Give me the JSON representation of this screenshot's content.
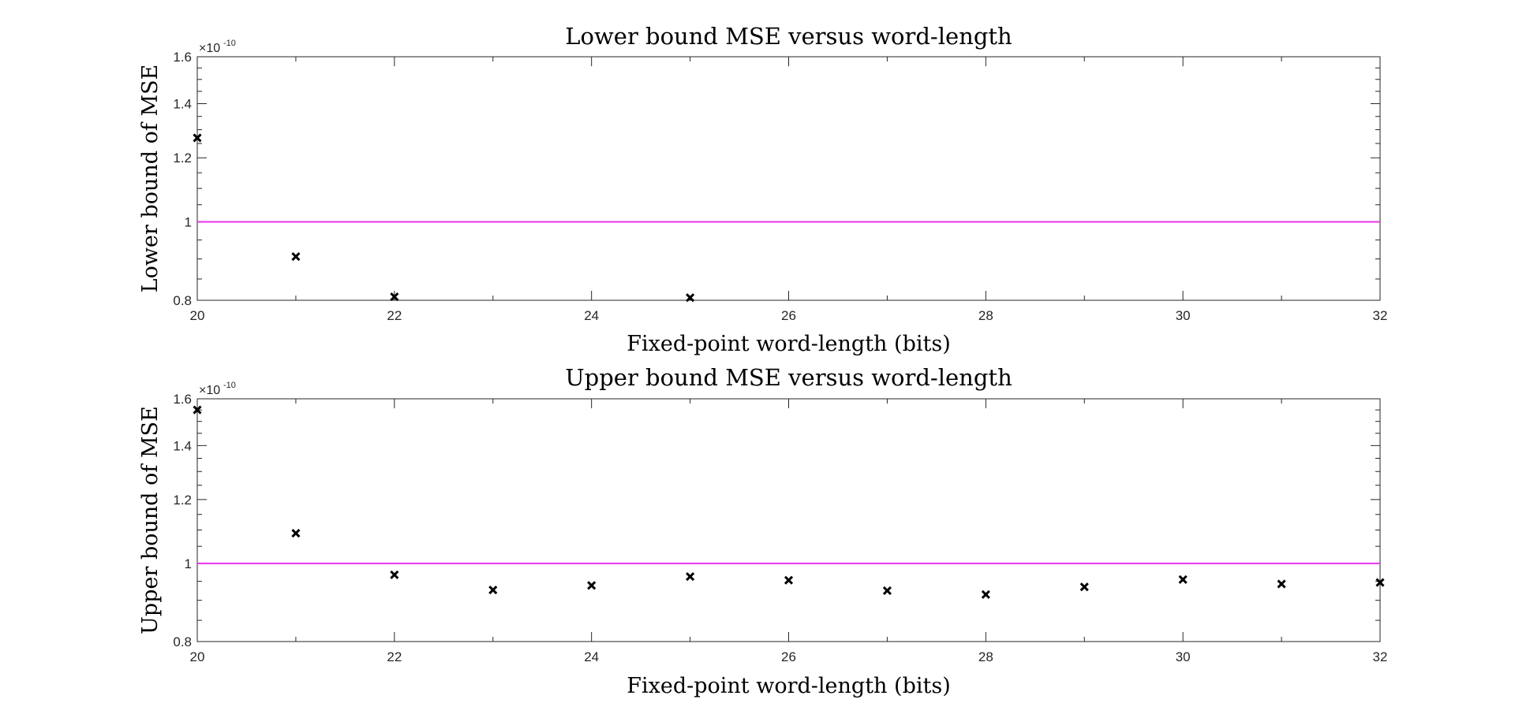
{
  "chart_data": [
    {
      "type": "scatter",
      "title": "Lower bound MSE versus word-length",
      "xlabel": "Fixed-point word-length (bits)",
      "ylabel": "Lower bound of MSE",
      "y_exponent_base": "×10",
      "y_exponent": "-10",
      "xlim": [
        20,
        32
      ],
      "ylim": [
        0.8,
        1.6
      ],
      "y_scale": "log",
      "x_ticks": [
        20,
        22,
        24,
        26,
        28,
        30,
        32
      ],
      "y_ticks": [
        0.8,
        1,
        1.2,
        1.4,
        1.6
      ],
      "y_tick_labels": [
        "0.8",
        "1",
        "1.2",
        "1.4",
        "1.6"
      ],
      "grid": false,
      "reference_line": {
        "y": 1.0,
        "color": "#e833e8"
      },
      "marker_color": "#000000",
      "x": [
        20,
        21,
        22,
        25
      ],
      "y": [
        1.27,
        0.906,
        0.808,
        0.806
      ]
    },
    {
      "type": "scatter",
      "title": "Upper bound MSE versus word-length",
      "xlabel": "Fixed-point word-length (bits)",
      "ylabel": "Upper bound of MSE",
      "y_exponent_base": "×10",
      "y_exponent": "-10",
      "xlim": [
        20,
        32
      ],
      "ylim": [
        0.8,
        1.6
      ],
      "y_scale": "log",
      "x_ticks": [
        20,
        22,
        24,
        26,
        28,
        30,
        32
      ],
      "y_ticks": [
        0.8,
        1,
        1.2,
        1.4,
        1.6
      ],
      "y_tick_labels": [
        "0.8",
        "1",
        "1.2",
        "1.4",
        "1.6"
      ],
      "grid": false,
      "reference_line": {
        "y": 1.0,
        "color": "#e833e8"
      },
      "marker_color": "#000000",
      "x": [
        20,
        21,
        22,
        23,
        24,
        25,
        26,
        27,
        28,
        29,
        30,
        31,
        32
      ],
      "y": [
        1.55,
        1.09,
        0.968,
        0.927,
        0.939,
        0.963,
        0.953,
        0.925,
        0.915,
        0.935,
        0.955,
        0.943,
        0.947
      ]
    }
  ]
}
